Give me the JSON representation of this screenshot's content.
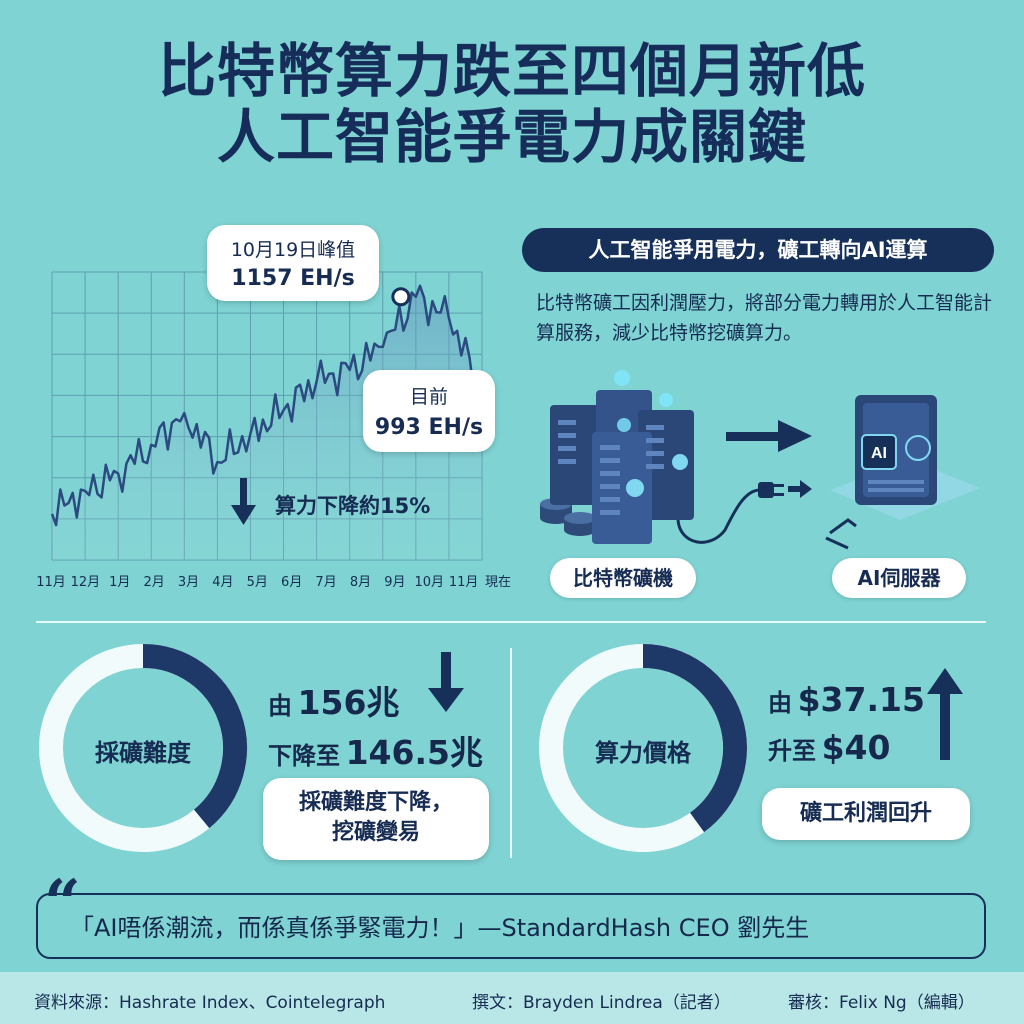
{
  "title": {
    "line1": "比特幣算力跌至四個月新低",
    "line2": "人工智能爭電力成關鍵"
  },
  "chart_data": {
    "type": "line",
    "x": [
      "11月",
      "12月",
      "1月",
      "2月",
      "3月",
      "4月",
      "5月",
      "6月",
      "7月",
      "8月",
      "9月",
      "10月",
      "11月",
      "現在"
    ],
    "series": [
      {
        "values": [
          780,
          820,
          850,
          900,
          955,
          870,
          920,
          960,
          1010,
          1030,
          1070,
          1157,
          1120,
          993
        ]
      }
    ],
    "annotations": {
      "peak_label": "10月19日峰值",
      "peak_value": "1157 EH/s",
      "current_label": "目前",
      "current_value": "993 EH/s",
      "drop_text": "算力下降約15%"
    },
    "ylim": [
      700,
      1200
    ],
    "grid": true
  },
  "ai_section": {
    "header": "人工智能爭用電力，礦工轉向AI運算",
    "description": "比特幣礦工因利潤壓力，將部分電力轉用於人工智能計算服務，減少比特幣挖礦算力。",
    "miner_label": "比特幣礦機",
    "server_label": "AI伺服器",
    "server_badge": "AI"
  },
  "difficulty": {
    "label": "採礦難度",
    "from_prefix": "由",
    "from_value": "156兆",
    "to_prefix": "下降至",
    "to_value": "146.5兆",
    "note_line1": "採礦難度下降，",
    "note_line2": "挖礦變易",
    "ring_fraction": 0.39
  },
  "hashprice": {
    "label": "算力價格",
    "from_prefix": "由",
    "from_value": "$37.15",
    "to_prefix": "升至",
    "to_value": "$40",
    "note": "礦工利潤回升",
    "ring_fraction": 0.4
  },
  "quote": {
    "text": "「AI唔係潮流，而係真係爭緊電力！」—StandardHash CEO 劉先生"
  },
  "footer": {
    "source": "資料來源：Hashrate Index、Cointelegraph",
    "author": "撰文：Brayden Lindrea（記者）",
    "editor": "審核：Felix Ng（編輯）"
  },
  "colors": {
    "background": "#7fd3d3",
    "navy": "#16305a",
    "chart_line": "#2a4a80"
  }
}
